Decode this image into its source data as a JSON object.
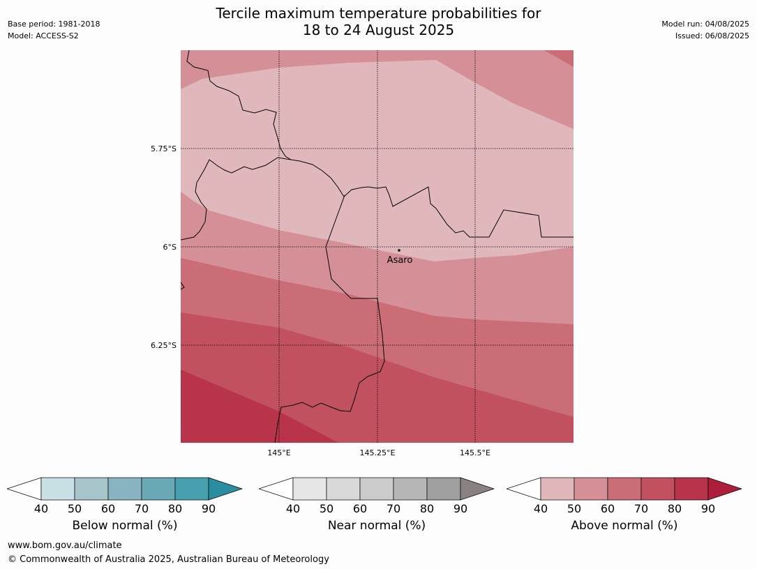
{
  "header": {
    "title_line1": "Tercile maximum temperature probabilities for",
    "title_line2": "18 to 24 August 2025",
    "base_period": "Base period: 1981-2018",
    "model": "Model: ACCESS-S2",
    "model_run": "Model run: 04/08/2025",
    "issued": "Issued: 06/08/2025"
  },
  "map": {
    "lat_labels": [
      "5.75°S",
      "6°S",
      "6.25°S"
    ],
    "lon_labels": [
      "145°E",
      "145.25°E",
      "145.5°E"
    ],
    "town": "Asaro"
  },
  "colorbars": [
    {
      "label": "Below normal (%)",
      "ticks": [
        "40",
        "50",
        "60",
        "70",
        "80",
        "90"
      ],
      "colors": [
        "#ffffff",
        "#c9e0e5",
        "#a6c4ca",
        "#88b3c0",
        "#6aaab7",
        "#47a0ae",
        "#2b8ea0"
      ]
    },
    {
      "label": "Near normal (%)",
      "ticks": [
        "40",
        "50",
        "60",
        "70",
        "80",
        "90"
      ],
      "colors": [
        "#ffffff",
        "#e6e6e6",
        "#d9d9d9",
        "#cbcbcb",
        "#b6b6b6",
        "#a0a0a0",
        "#8a8282"
      ]
    },
    {
      "label": "Above normal (%)",
      "ticks": [
        "40",
        "50",
        "60",
        "70",
        "80",
        "90"
      ],
      "colors": [
        "#ffffff",
        "#e0b8bc",
        "#d58f97",
        "#cb6d77",
        "#c25160",
        "#b8344b",
        "#ae1e3c"
      ]
    }
  ],
  "footer": {
    "url": "www.bom.gov.au/climate",
    "copyright": "© Commonwealth of Australia 2025, Australian Bureau of Meteorology"
  }
}
